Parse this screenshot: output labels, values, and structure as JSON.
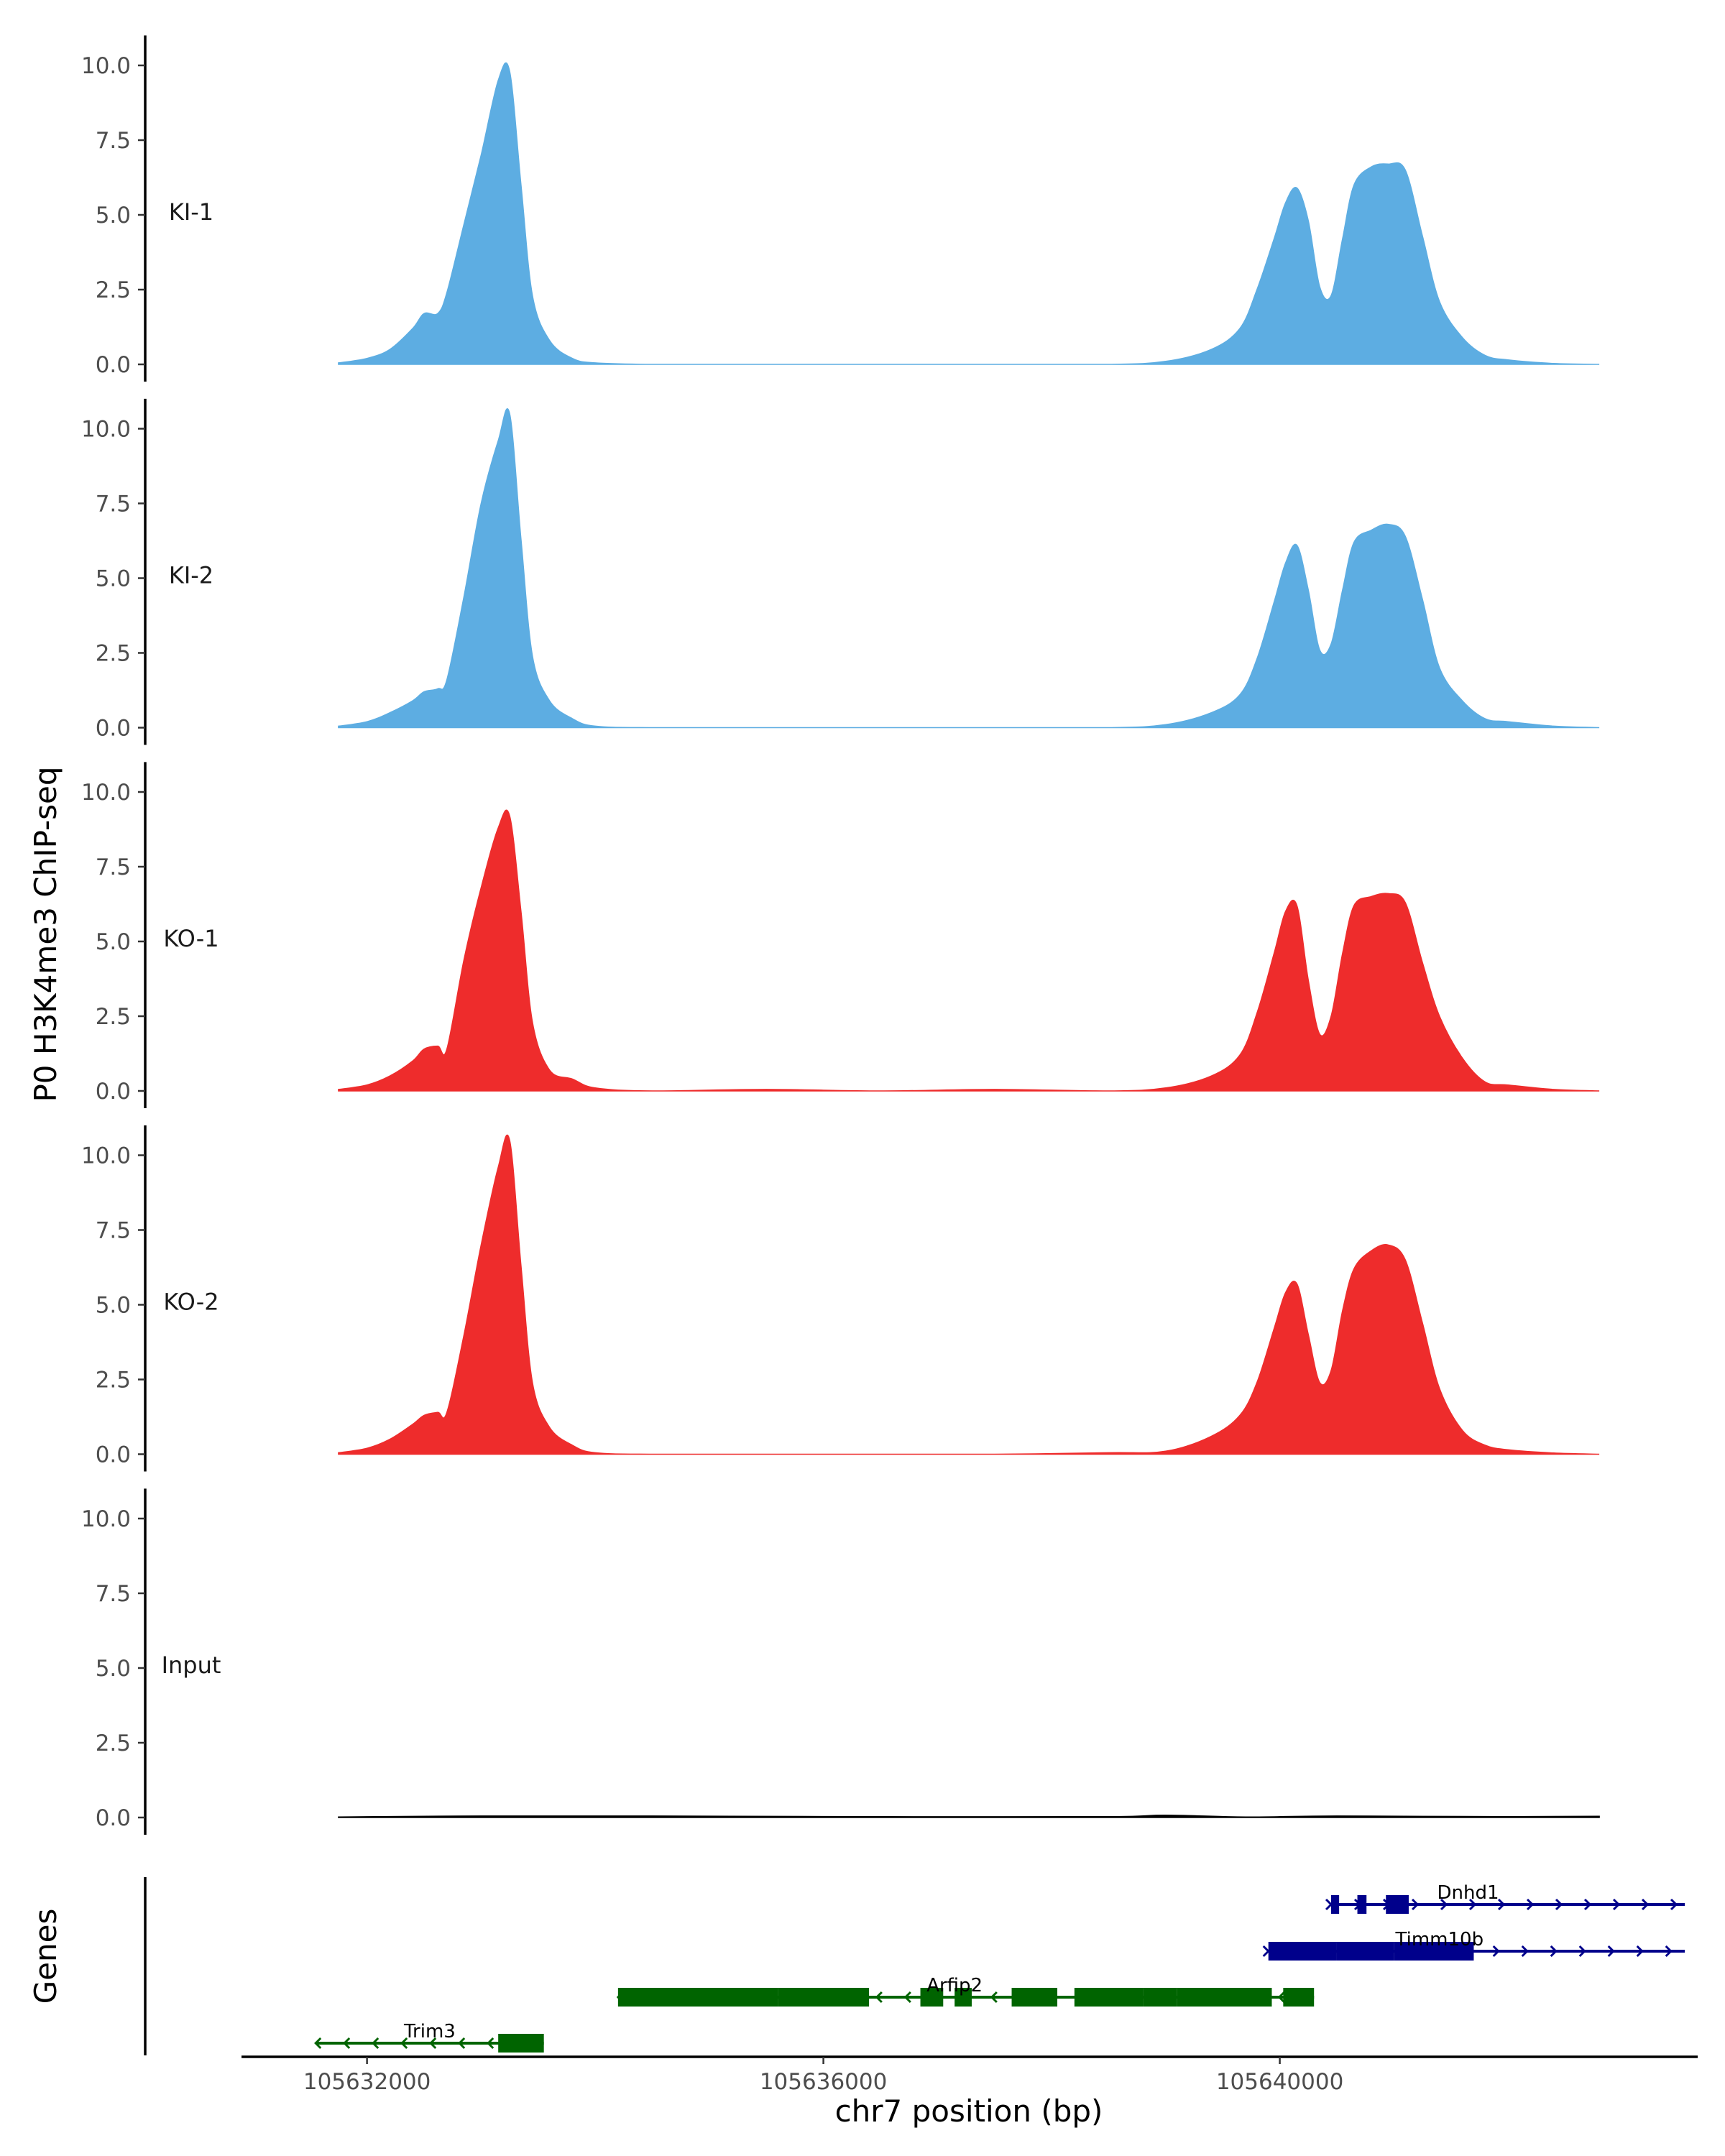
{
  "chart_data": {
    "type": "area",
    "ylabel": "P0 H3K4me3 ChIP-seq",
    "xlabel": "chr7 position (bp)",
    "genes_label": "Genes",
    "xlim": [
      105630900,
      105643650
    ],
    "ylim": [
      0,
      11
    ],
    "yticks": [
      0,
      2.5,
      5,
      7.5,
      10
    ],
    "ytick_labels": [
      "0.0",
      "2.5",
      "5.0",
      "7.5",
      "10.0"
    ],
    "xticks": [
      105632000,
      105636000,
      105640000
    ],
    "xtick_labels": [
      "105632000",
      "105636000",
      "105640000"
    ],
    "tracks": [
      {
        "name": "KI-1",
        "color": "#5dade2",
        "x": [
          105631750,
          105632000,
          105632200,
          105632400,
          105632500,
          105632620,
          105632700,
          105632850,
          105633000,
          105633150,
          105633250,
          105633350,
          105633450,
          105633600,
          105633800,
          105634000,
          105634500,
          105635500,
          105636500,
          105637500,
          105638500,
          105639000,
          105639400,
          105639650,
          105639800,
          105639950,
          105640050,
          105640150,
          105640250,
          105640350,
          105640450,
          105640550,
          105640650,
          105640800,
          105640950,
          105641100,
          105641250,
          105641400,
          105641600,
          105641800,
          105642000,
          105642400,
          105642800
        ],
        "values": [
          0.05,
          0.2,
          0.5,
          1.2,
          1.7,
          1.7,
          2.4,
          4.7,
          7.0,
          9.5,
          9.8,
          6.0,
          2.3,
          0.8,
          0.2,
          0.05,
          0.0,
          0.0,
          0.0,
          0.0,
          0.0,
          0.1,
          0.5,
          1.2,
          2.5,
          4.2,
          5.4,
          5.9,
          4.8,
          2.6,
          2.3,
          4.2,
          6.0,
          6.6,
          6.7,
          6.5,
          4.3,
          2.1,
          0.9,
          0.3,
          0.15,
          0.03,
          0.0
        ]
      },
      {
        "name": "KI-2",
        "color": "#5dade2",
        "x": [
          105631750,
          105632000,
          105632200,
          105632400,
          105632500,
          105632620,
          105632700,
          105632850,
          105633000,
          105633150,
          105633250,
          105633350,
          105633450,
          105633600,
          105633800,
          105634000,
          105634500,
          105635500,
          105636500,
          105637500,
          105638500,
          105639000,
          105639400,
          105639650,
          105639800,
          105639950,
          105640050,
          105640150,
          105640250,
          105640350,
          105640450,
          105640550,
          105640650,
          105640800,
          105640950,
          105641100,
          105641250,
          105641400,
          105641600,
          105641800,
          105642000,
          105642400,
          105642800
        ],
        "values": [
          0.05,
          0.2,
          0.5,
          0.9,
          1.2,
          1.3,
          1.6,
          4.4,
          7.5,
          9.6,
          10.5,
          6.3,
          2.4,
          0.9,
          0.3,
          0.05,
          0.0,
          0.0,
          0.0,
          0.0,
          0.0,
          0.1,
          0.5,
          1.1,
          2.3,
          4.2,
          5.5,
          6.1,
          4.6,
          2.6,
          2.8,
          4.6,
          6.2,
          6.6,
          6.8,
          6.4,
          4.3,
          2.0,
          0.9,
          0.3,
          0.2,
          0.05,
          0.0
        ]
      },
      {
        "name": "KO-1",
        "color": "#ee2c2c",
        "x": [
          105631750,
          105632000,
          105632200,
          105632400,
          105632500,
          105632620,
          105632700,
          105632850,
          105633000,
          105633150,
          105633250,
          105633350,
          105633450,
          105633600,
          105633800,
          105634000,
          105634500,
          105635500,
          105636500,
          105637500,
          105638500,
          105639000,
          105639400,
          105639650,
          105639800,
          105639950,
          105640050,
          105640150,
          105640250,
          105640350,
          105640450,
          105640550,
          105640650,
          105640800,
          105640950,
          105641100,
          105641250,
          105641400,
          105641600,
          105641800,
          105642000,
          105642400,
          105642800
        ],
        "values": [
          0.05,
          0.2,
          0.5,
          1.0,
          1.4,
          1.5,
          1.4,
          4.4,
          6.8,
          8.8,
          9.2,
          6.0,
          2.3,
          0.7,
          0.4,
          0.1,
          0.0,
          0.05,
          0.0,
          0.05,
          0.0,
          0.1,
          0.5,
          1.2,
          2.6,
          4.6,
          6.0,
          6.2,
          3.7,
          1.9,
          2.5,
          4.6,
          6.2,
          6.5,
          6.6,
          6.3,
          4.3,
          2.5,
          1.1,
          0.3,
          0.2,
          0.05,
          0.0
        ]
      },
      {
        "name": "KO-2",
        "color": "#ee2c2c",
        "x": [
          105631750,
          105632000,
          105632200,
          105632400,
          105632500,
          105632620,
          105632700,
          105632850,
          105633000,
          105633150,
          105633250,
          105633350,
          105633450,
          105633600,
          105633800,
          105634000,
          105634500,
          105635500,
          105636500,
          105637500,
          105638500,
          105639000,
          105639400,
          105639650,
          105639800,
          105639950,
          105640050,
          105640150,
          105640250,
          105640350,
          105640450,
          105640550,
          105640650,
          105640800,
          105640950,
          105641100,
          105641250,
          105641400,
          105641600,
          105641800,
          105642000,
          105642400,
          105642800
        ],
        "values": [
          0.05,
          0.2,
          0.5,
          1.0,
          1.3,
          1.4,
          1.4,
          4.0,
          7.0,
          9.6,
          10.5,
          6.3,
          2.4,
          0.9,
          0.3,
          0.05,
          0.0,
          0.0,
          0.0,
          0.0,
          0.05,
          0.1,
          0.6,
          1.3,
          2.4,
          4.2,
          5.4,
          5.7,
          4.0,
          2.4,
          2.8,
          4.8,
          6.2,
          6.8,
          7.0,
          6.5,
          4.4,
          2.2,
          0.8,
          0.3,
          0.15,
          0.04,
          0.0
        ]
      },
      {
        "name": "Input",
        "color": "#000000",
        "x": [
          105631750,
          105633000,
          105634500,
          105636500,
          105638500,
          105639000,
          105639700,
          105640500,
          105642000,
          105642800
        ],
        "values": [
          0.02,
          0.05,
          0.05,
          0.03,
          0.03,
          0.08,
          0.02,
          0.05,
          0.03,
          0.04
        ]
      }
    ],
    "genes": [
      {
        "name": "Dnhd1",
        "strand": "+",
        "color": "#00008b",
        "start": 105640450,
        "end": 105643550,
        "label_at": 105641650,
        "exons": [
          [
            105640450,
            105640520
          ],
          [
            105640680,
            105640760
          ],
          [
            105640930,
            105641130
          ]
        ]
      },
      {
        "name": "Timm10b",
        "strand": "+",
        "color": "#00008b",
        "start": 105639900,
        "end": 105643550,
        "label_at": 105641400,
        "exons": [
          [
            105639900,
            105640500
          ],
          [
            105640500,
            105641000
          ],
          [
            105641000,
            105641700
          ]
        ]
      },
      {
        "name": "Arfip2",
        "strand": "-",
        "color": "#006400",
        "start": 105634200,
        "end": 105640300,
        "label_at": 105637150,
        "exons": [
          [
            105634200,
            105635600
          ],
          [
            105635600,
            105636400
          ],
          [
            105636850,
            105637050
          ],
          [
            105637150,
            105637300
          ],
          [
            105637650,
            105638050
          ],
          [
            105638200,
            105638800
          ],
          [
            105638800,
            105639100
          ],
          [
            105639100,
            105639930
          ],
          [
            105640030,
            105640300
          ]
        ]
      },
      {
        "name": "Trim3",
        "strand": "-",
        "color": "#006400",
        "start": 105631550,
        "end": 105633550,
        "label_at": 105632550,
        "exons": [
          [
            105633150,
            105633550
          ]
        ]
      }
    ]
  }
}
